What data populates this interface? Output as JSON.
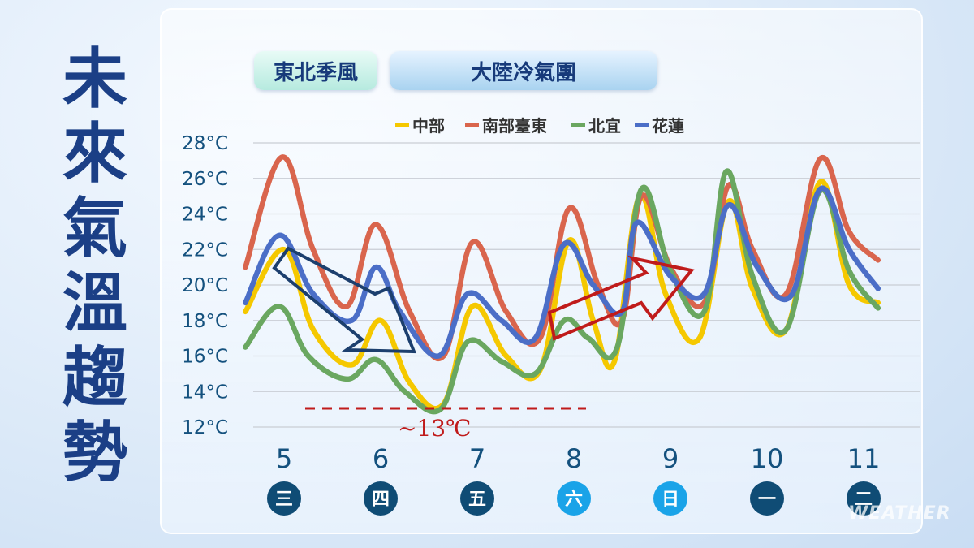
{
  "title_chars": [
    "未",
    "來",
    "氣",
    "溫",
    "趨",
    "勢"
  ],
  "tags": {
    "northeast_monsoon": "東北季風",
    "continental_cold": "大陸冷氣團"
  },
  "watermark": "WEATHER",
  "colors": {
    "central": "#f5c800",
    "south_east": "#d9654d",
    "north_yilan": "#6aa760",
    "hualien": "#4b6ec7",
    "weekday_dark": "#0f4c75",
    "weekday_weekend": "#1aa3e8",
    "down_arrow": "#1c3f6e",
    "up_arrow": "#c01b1b"
  },
  "chart_data": {
    "type": "line",
    "y_ticks": [
      "28°C",
      "26°C",
      "24°C",
      "22°C",
      "20°C",
      "18°C",
      "16°C",
      "14°C",
      "12°C"
    ],
    "ylim": [
      12,
      28
    ],
    "x_dates": [
      "5",
      "6",
      "7",
      "8",
      "9",
      "10",
      "11"
    ],
    "weekdays": [
      "三",
      "四",
      "五",
      "六",
      "日",
      "一",
      "二"
    ],
    "weekend_flags": [
      false,
      false,
      false,
      true,
      true,
      false,
      false
    ],
    "legend": [
      "中部",
      "南部臺東",
      "北宜",
      "花蓮"
    ],
    "annotation": "~13℃",
    "annotation_value": 13,
    "series": [
      {
        "name": "中部",
        "color_key": "central",
        "points": [
          [
            4.6,
            18.5
          ],
          [
            5.0,
            22.0
          ],
          [
            5.3,
            17.5
          ],
          [
            5.7,
            15.5
          ],
          [
            6.0,
            18.0
          ],
          [
            6.3,
            14.5
          ],
          [
            6.65,
            13.3
          ],
          [
            6.95,
            18.8
          ],
          [
            7.3,
            16.0
          ],
          [
            7.65,
            15.2
          ],
          [
            7.95,
            22.5
          ],
          [
            8.2,
            18.0
          ],
          [
            8.42,
            15.7
          ],
          [
            8.68,
            25.0
          ],
          [
            8.95,
            19.5
          ],
          [
            9.3,
            17.0
          ],
          [
            9.6,
            24.7
          ],
          [
            9.85,
            19.8
          ],
          [
            10.2,
            17.5
          ],
          [
            10.55,
            25.8
          ],
          [
            10.85,
            20.0
          ],
          [
            11.15,
            19.0
          ]
        ]
      },
      {
        "name": "南部臺東",
        "color_key": "south_east",
        "points": [
          [
            4.6,
            21.0
          ],
          [
            4.98,
            27.2
          ],
          [
            5.3,
            22.0
          ],
          [
            5.65,
            18.8
          ],
          [
            5.95,
            23.4
          ],
          [
            6.3,
            18.5
          ],
          [
            6.65,
            16.0
          ],
          [
            6.95,
            22.4
          ],
          [
            7.3,
            18.5
          ],
          [
            7.65,
            17.0
          ],
          [
            7.95,
            24.3
          ],
          [
            8.25,
            20.0
          ],
          [
            8.5,
            18.0
          ],
          [
            8.7,
            25.0
          ],
          [
            9.0,
            21.0
          ],
          [
            9.35,
            19.0
          ],
          [
            9.6,
            25.6
          ],
          [
            9.85,
            22.0
          ],
          [
            10.2,
            19.5
          ],
          [
            10.55,
            27.1
          ],
          [
            10.85,
            23.0
          ],
          [
            11.15,
            21.4
          ]
        ]
      },
      {
        "name": "北宜",
        "color_key": "north_yilan",
        "points": [
          [
            4.6,
            16.5
          ],
          [
            4.95,
            18.8
          ],
          [
            5.25,
            16.0
          ],
          [
            5.65,
            14.7
          ],
          [
            5.95,
            15.8
          ],
          [
            6.25,
            14.0
          ],
          [
            6.62,
            13.0
          ],
          [
            6.9,
            16.8
          ],
          [
            7.25,
            15.7
          ],
          [
            7.6,
            15.0
          ],
          [
            7.9,
            18.0
          ],
          [
            8.15,
            17.0
          ],
          [
            8.45,
            16.5
          ],
          [
            8.7,
            25.4
          ],
          [
            9.0,
            20.8
          ],
          [
            9.35,
            18.5
          ],
          [
            9.58,
            26.4
          ],
          [
            9.85,
            20.5
          ],
          [
            10.2,
            17.5
          ],
          [
            10.55,
            25.3
          ],
          [
            10.85,
            20.8
          ],
          [
            11.15,
            18.7
          ]
        ]
      },
      {
        "name": "花蓮",
        "color_key": "hualien",
        "points": [
          [
            4.6,
            19.0
          ],
          [
            4.95,
            22.8
          ],
          [
            5.3,
            19.5
          ],
          [
            5.7,
            18.0
          ],
          [
            5.95,
            21.0
          ],
          [
            6.2,
            18.5
          ],
          [
            6.6,
            16.0
          ],
          [
            6.9,
            19.5
          ],
          [
            7.25,
            18.0
          ],
          [
            7.6,
            17.0
          ],
          [
            7.9,
            22.3
          ],
          [
            8.2,
            20.0
          ],
          [
            8.5,
            18.5
          ],
          [
            8.65,
            23.5
          ],
          [
            9.0,
            20.5
          ],
          [
            9.35,
            19.5
          ],
          [
            9.6,
            24.5
          ],
          [
            9.9,
            21.0
          ],
          [
            10.25,
            19.4
          ],
          [
            10.55,
            25.4
          ],
          [
            10.85,
            22.0
          ],
          [
            11.15,
            19.8
          ]
        ]
      }
    ]
  }
}
